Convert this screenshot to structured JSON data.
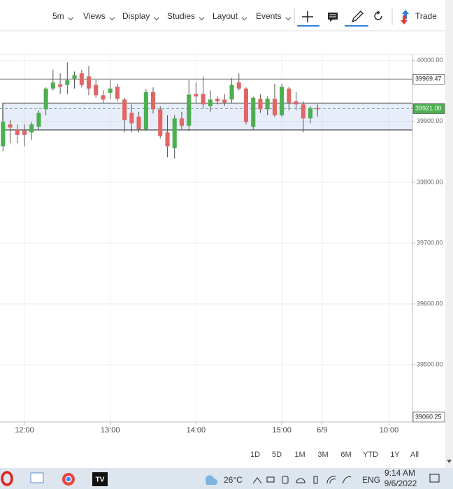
{
  "toolbar": {
    "menus": [
      "5m",
      "Views",
      "Display",
      "Studies",
      "Layout",
      "Events"
    ],
    "trade": "Trade"
  },
  "chart_data": {
    "type": "candlestick",
    "x": [
      11.75,
      11.833,
      11.917,
      12,
      12.083,
      12.167,
      12.25,
      12.333,
      12.417,
      12.5,
      12.583,
      12.667,
      12.75,
      12.833,
      12.917,
      13,
      13.083,
      13.167,
      13.25,
      13.333,
      13.417,
      13.5,
      13.583,
      13.667,
      13.75,
      13.833,
      13.917,
      14,
      14.083,
      14.167,
      14.25,
      14.333,
      14.417,
      14.5,
      14.583,
      14.667,
      14.75,
      14.833,
      14.917,
      15,
      15.083,
      15.167,
      15.25,
      15.333,
      15.417
    ],
    "open": [
      39859,
      39895,
      39887,
      39885,
      39882,
      39891,
      39920,
      39954,
      39961,
      39960,
      39970,
      39979,
      39974,
      39960,
      39943,
      39947,
      39957,
      39936,
      39914,
      39908,
      39887,
      39948,
      39920,
      39882,
      39856,
      39905,
      39893,
      39945,
      39945,
      39925,
      39937,
      39936,
      39936,
      39964,
      39954,
      39891,
      39937,
      39920,
      39937,
      39910,
      39954,
      39933,
      39928,
      39905,
      39922
    ],
    "high": [
      39901,
      39902,
      39895,
      39895,
      39899,
      39918,
      39956,
      39985,
      39979,
      39997,
      39982,
      39985,
      39991,
      39968,
      39951,
      39968,
      39962,
      39939,
      39928,
      39916,
      39953,
      39956,
      39925,
      39910,
      39910,
      39916,
      39968,
      39964,
      39974,
      39951,
      39941,
      39945,
      39971,
      39979,
      39956,
      39941,
      39945,
      39941,
      39962,
      39962,
      39957,
      39948,
      39933,
      39925,
      39928
    ],
    "low": [
      39851,
      39864,
      39864,
      39859,
      39870,
      39886,
      39910,
      39951,
      39945,
      39945,
      39954,
      39956,
      39943,
      39939,
      39930,
      39937,
      39933,
      39882,
      39882,
      39882,
      39884,
      39913,
      39872,
      39841,
      39839,
      39887,
      39884,
      39930,
      39922,
      39916,
      39928,
      39925,
      39930,
      39951,
      39895,
      39887,
      39914,
      39910,
      39907,
      39907,
      39918,
      39918,
      39882,
      39897,
      39908
    ],
    "close": [
      39899,
      39890,
      39878,
      39878,
      39895,
      39914,
      39954,
      39964,
      39957,
      39968,
      39976,
      39960,
      39954,
      39943,
      39936,
      39954,
      39937,
      39902,
      39897,
      39887,
      39948,
      39920,
      39876,
      39859,
      39905,
      39893,
      39944,
      39941,
      39928,
      39936,
      39933,
      39931,
      39960,
      39954,
      39899,
      39939,
      39920,
      39937,
      39910,
      39957,
      39931,
      39928,
      39905,
      39922,
      39920
    ],
    "up_color": "#4caf50",
    "down_color": "#e06666",
    "xlim": [
      11.715,
      16.523
    ],
    "xticks": [
      {
        "value": 12,
        "label": "12:00"
      },
      {
        "value": 13,
        "label": "13:00"
      },
      {
        "value": 14,
        "label": "14:00"
      },
      {
        "value": 15,
        "label": "15:00"
      },
      {
        "value": 15.47,
        "label": "6/9"
      },
      {
        "value": 16.25,
        "label": "10:00"
      }
    ],
    "ylim": [
      39406,
      40010
    ],
    "yticks": [
      {
        "value": 40000,
        "label": "40000.00"
      },
      {
        "value": 39900,
        "label": "39900.00"
      },
      {
        "value": 39800,
        "label": "39800.00"
      },
      {
        "value": 39700,
        "label": "39700.00"
      },
      {
        "value": 39600,
        "label": "39600.00"
      },
      {
        "value": 39500,
        "label": "39500.00"
      }
    ],
    "grid": true,
    "hline": 39969.47,
    "dashed_line": {
      "value": 39921,
      "label": "39921.00"
    },
    "box": [
      39886,
      39930
    ],
    "low_marker": 39060.25
  },
  "ranges": [
    "1D",
    "5D",
    "1M",
    "3M",
    "6M",
    "YTD",
    "1Y",
    "All"
  ],
  "taskbar": {
    "weather": "26°C",
    "lang": "ENG",
    "time": "9:14 AM",
    "date": "9/6/2022"
  }
}
